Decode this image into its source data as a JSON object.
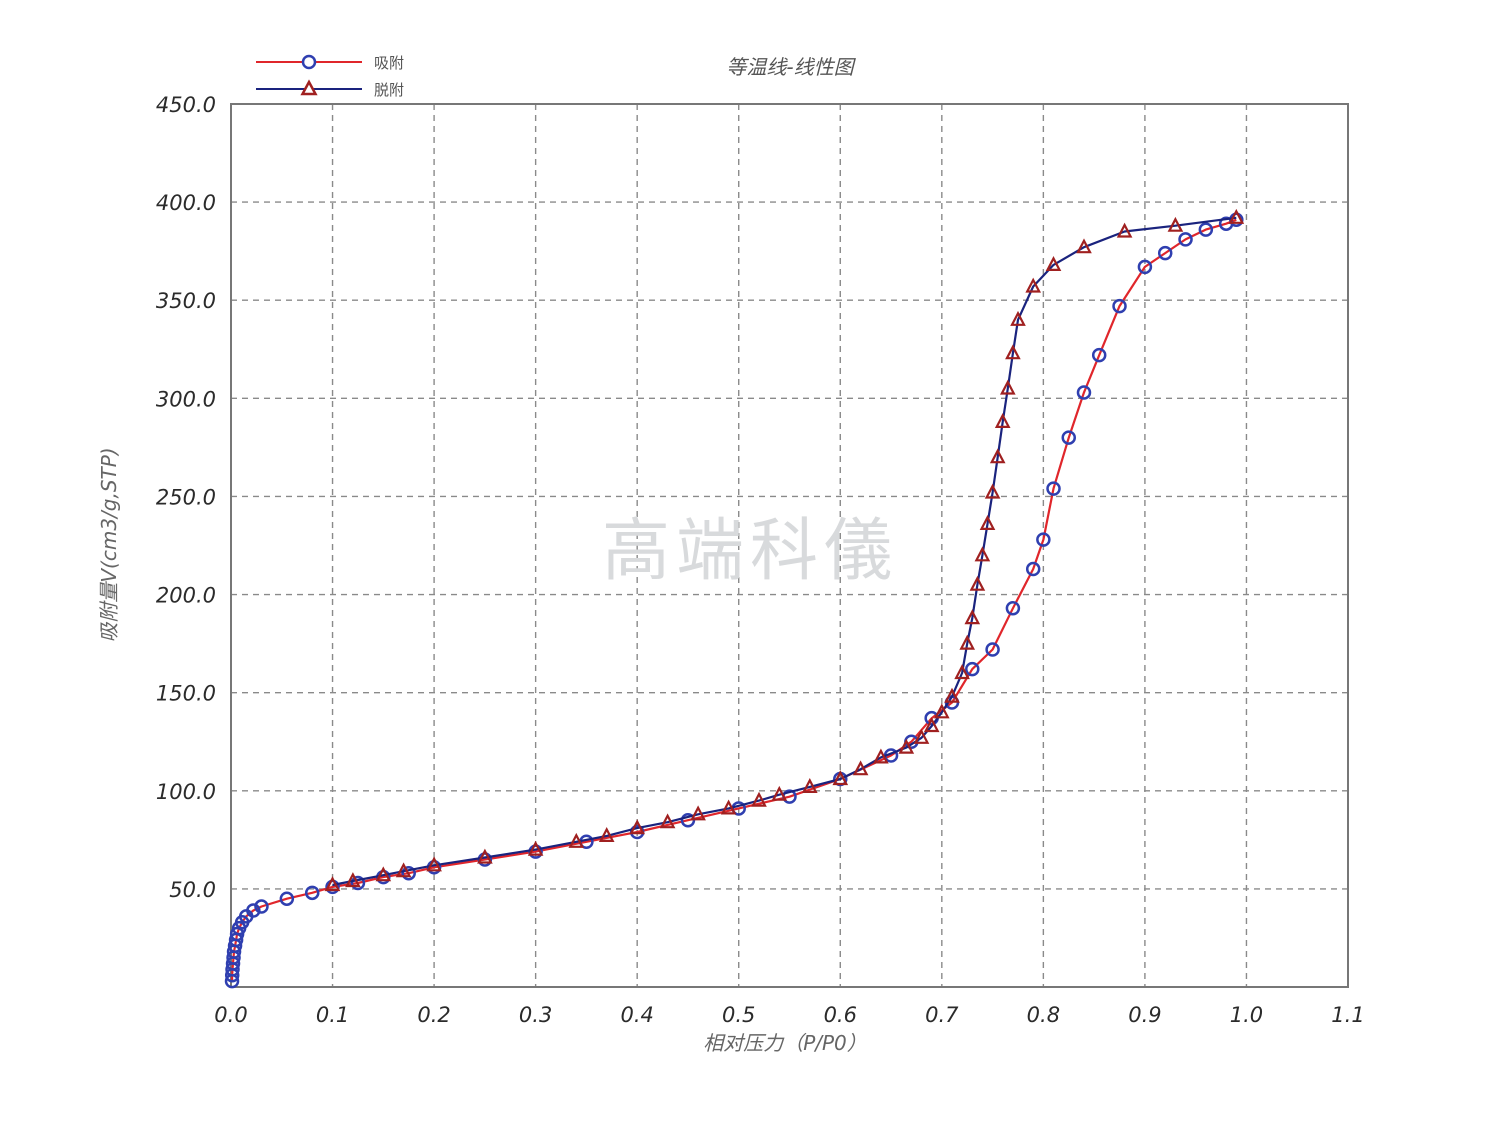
{
  "chart_data": {
    "type": "line",
    "title": "等温线-线性图",
    "xlabel": "相对压力（P/P0）",
    "ylabel": "吸附量V(cm3/g,STP)",
    "xlim": [
      0.0,
      1.1
    ],
    "ylim": [
      0.0,
      450.0
    ],
    "xticks": [
      "0.0",
      "0.1",
      "0.2",
      "0.3",
      "0.4",
      "0.5",
      "0.6",
      "0.7",
      "0.8",
      "0.9",
      "1.0",
      "1.1"
    ],
    "yticks": [
      "50.0",
      "100.0",
      "150.0",
      "200.0",
      "250.0",
      "300.0",
      "350.0",
      "400.0",
      "450.0"
    ],
    "grid": true,
    "legend_position": "top-left",
    "watermark": "高端科儀",
    "series": [
      {
        "name": "吸附",
        "marker": "circle",
        "line_color": "#e0262b",
        "marker_color": "#2f3fb0",
        "x": [
          0.001,
          0.0012,
          0.0015,
          0.002,
          0.0025,
          0.003,
          0.004,
          0.005,
          0.006,
          0.008,
          0.011,
          0.015,
          0.022,
          0.03,
          0.055,
          0.08,
          0.1,
          0.125,
          0.15,
          0.175,
          0.2,
          0.25,
          0.3,
          0.35,
          0.4,
          0.45,
          0.5,
          0.55,
          0.6,
          0.65,
          0.67,
          0.69,
          0.71,
          0.73,
          0.75,
          0.77,
          0.79,
          0.8,
          0.81,
          0.825,
          0.84,
          0.855,
          0.875,
          0.9,
          0.92,
          0.94,
          0.96,
          0.98,
          0.99
        ],
        "y": [
          3,
          6,
          9,
          12,
          15,
          18,
          21,
          24,
          27,
          30,
          33,
          36,
          39,
          41,
          45,
          48,
          51,
          53,
          56,
          58,
          61,
          65,
          69,
          74,
          79,
          85,
          91,
          97,
          106,
          118,
          125,
          137,
          145,
          162,
          172,
          193,
          213,
          228,
          254,
          280,
          303,
          322,
          347,
          367,
          374,
          381,
          386,
          389,
          391
        ]
      },
      {
        "name": "脱附",
        "marker": "triangle",
        "line_color": "#1a237e",
        "marker_color": "#a02020",
        "x": [
          0.99,
          0.93,
          0.88,
          0.84,
          0.81,
          0.79,
          0.775,
          0.77,
          0.765,
          0.76,
          0.755,
          0.75,
          0.745,
          0.74,
          0.735,
          0.73,
          0.725,
          0.72,
          0.71,
          0.7,
          0.69,
          0.68,
          0.665,
          0.64,
          0.62,
          0.6,
          0.57,
          0.54,
          0.52,
          0.49,
          0.46,
          0.43,
          0.4,
          0.37,
          0.34,
          0.3,
          0.25,
          0.2,
          0.17,
          0.15,
          0.12,
          0.1
        ],
        "y": [
          392,
          388,
          385,
          377,
          368,
          357,
          340,
          323,
          305,
          288,
          270,
          252,
          236,
          220,
          205,
          188,
          175,
          160,
          148,
          140,
          133,
          127,
          122,
          117,
          111,
          106,
          102,
          98,
          95,
          91,
          88,
          84,
          81,
          77,
          74,
          70,
          66,
          62,
          59,
          57,
          54,
          52
        ]
      }
    ]
  }
}
